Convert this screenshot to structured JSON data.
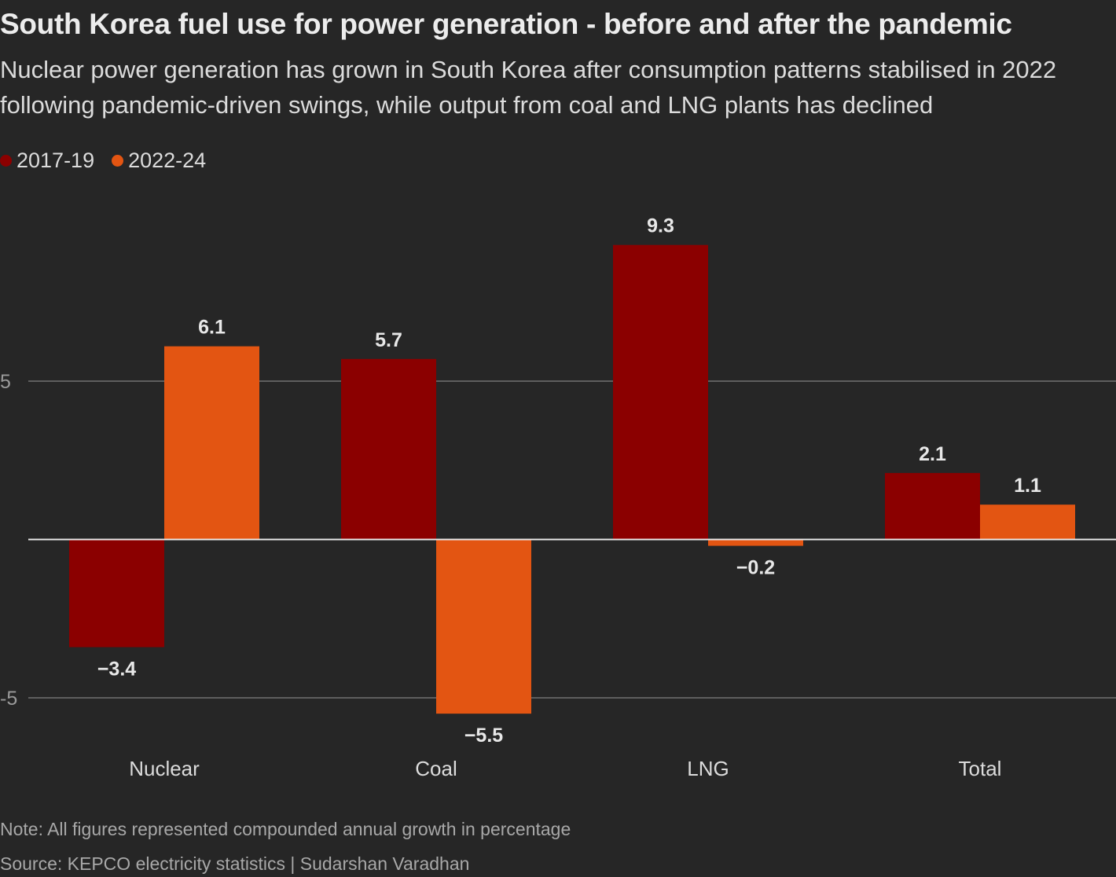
{
  "title": "South Korea fuel use for power generation - before and after the pandemic",
  "subtitle": "Nuclear power generation has grown in South Korea after consumption patterns stabilised in 2022 following pandemic-driven swings, while output from coal and LNG plants has declined",
  "note": "Note: All figures represented compounded annual growth in percentage",
  "source": "Source: KEPCO electricity statistics | Sudarshan Varadhan",
  "colors": {
    "background": "#262626",
    "series_1": "#8b0000",
    "series_2": "#e35512",
    "gridline": "#707070",
    "zero_line": "#e8e8e8"
  },
  "chart_data": {
    "type": "bar",
    "categories": [
      "Nuclear",
      "Coal",
      "LNG",
      "Total"
    ],
    "series": [
      {
        "name": "2017-19",
        "values": [
          -3.4,
          5.7,
          9.3,
          2.1
        ],
        "labels": [
          "−3.4",
          "5.7",
          "9.3",
          "2.1"
        ]
      },
      {
        "name": "2022-24",
        "values": [
          6.1,
          -5.5,
          -0.2,
          1.1
        ],
        "labels": [
          "6.1",
          "−5.5",
          "−0.2",
          "1.1"
        ]
      }
    ],
    "yticks": [
      5,
      -5
    ],
    "ytick_labels": [
      "5",
      "-5"
    ],
    "ylim": [
      -6.5,
      10
    ],
    "grid": true,
    "legend": "top-left",
    "xlabel": "",
    "ylabel": ""
  }
}
